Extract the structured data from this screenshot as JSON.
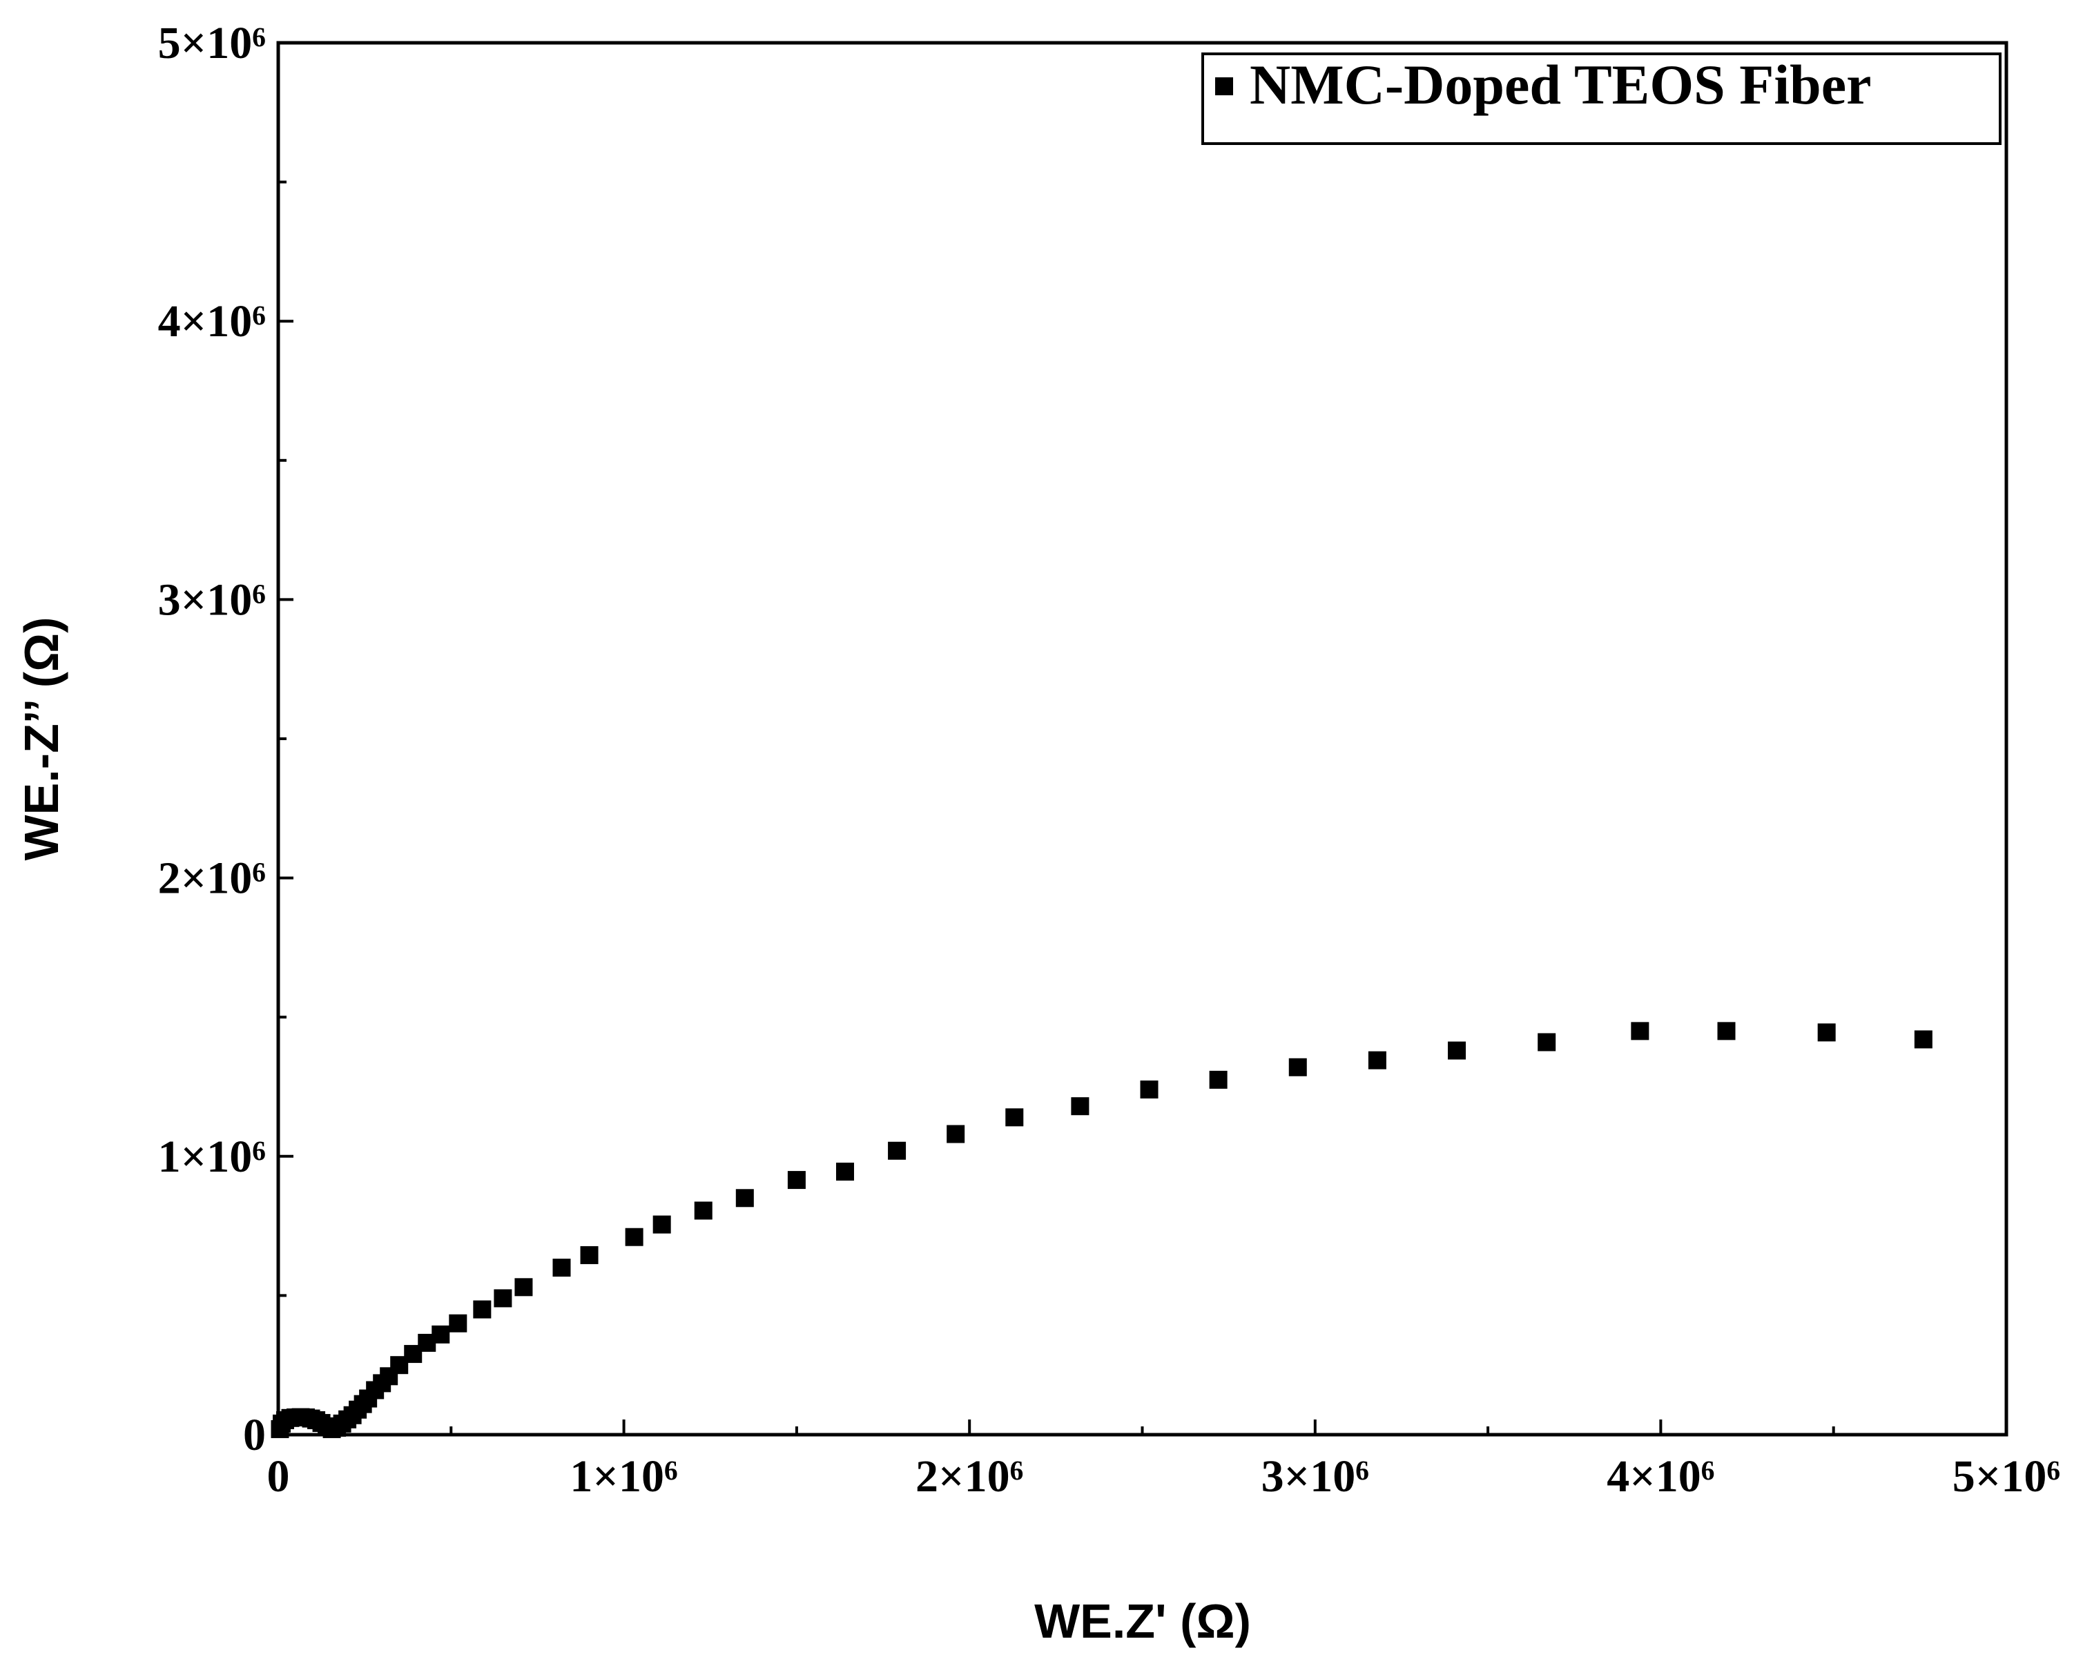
{
  "chart_data": {
    "type": "scatter",
    "title": "",
    "xlabel": "WE.Z' (Ω)",
    "ylabel": "WE.-Z’’ (Ω)",
    "xlim": [
      0,
      5000000
    ],
    "ylim": [
      0,
      5000000
    ],
    "x_ticks": [
      {
        "value": 0,
        "label": "0"
      },
      {
        "value": 1000000,
        "label": "1×10⁶"
      },
      {
        "value": 2000000,
        "label": "2×10⁶"
      },
      {
        "value": 3000000,
        "label": "3×10⁶"
      },
      {
        "value": 4000000,
        "label": "4×10⁶"
      },
      {
        "value": 5000000,
        "label": "5×10⁶"
      }
    ],
    "y_ticks": [
      {
        "value": 0,
        "label": "0"
      },
      {
        "value": 1000000,
        "label": "1×10⁶"
      },
      {
        "value": 2000000,
        "label": "2×10⁶"
      },
      {
        "value": 3000000,
        "label": "3×10⁶"
      },
      {
        "value": 4000000,
        "label": "4×10⁶"
      },
      {
        "value": 5000000,
        "label": "5×10⁶"
      }
    ],
    "minor_ticks_per_major": 1,
    "grid": false,
    "legend_position": "top-right",
    "series": [
      {
        "name": "NMC-Doped TEOS Fiber",
        "marker": "square",
        "color": "#000000",
        "points": [
          [
            5000,
            20000
          ],
          [
            10000,
            40000
          ],
          [
            20000,
            52000
          ],
          [
            35000,
            60000
          ],
          [
            50000,
            62000
          ],
          [
            65000,
            63000
          ],
          [
            80000,
            62000
          ],
          [
            95000,
            58000
          ],
          [
            110000,
            52000
          ],
          [
            125000,
            42000
          ],
          [
            140000,
            30000
          ],
          [
            155000,
            20000
          ],
          [
            170000,
            25000
          ],
          [
            185000,
            40000
          ],
          [
            200000,
            55000
          ],
          [
            215000,
            70000
          ],
          [
            230000,
            90000
          ],
          [
            245000,
            110000
          ],
          [
            260000,
            130000
          ],
          [
            280000,
            160000
          ],
          [
            300000,
            185000
          ],
          [
            320000,
            210000
          ],
          [
            350000,
            250000
          ],
          [
            390000,
            290000
          ],
          [
            430000,
            330000
          ],
          [
            470000,
            360000
          ],
          [
            520000,
            400000
          ],
          [
            590000,
            450000
          ],
          [
            650000,
            490000
          ],
          [
            710000,
            530000
          ],
          [
            820000,
            600000
          ],
          [
            900000,
            645000
          ],
          [
            1030000,
            710000
          ],
          [
            1110000,
            755000
          ],
          [
            1230000,
            805000
          ],
          [
            1350000,
            850000
          ],
          [
            1500000,
            915000
          ],
          [
            1640000,
            945000
          ],
          [
            1790000,
            1020000
          ],
          [
            1960000,
            1080000
          ],
          [
            2130000,
            1140000
          ],
          [
            2320000,
            1180000
          ],
          [
            2520000,
            1240000
          ],
          [
            2720000,
            1275000
          ],
          [
            2950000,
            1320000
          ],
          [
            3180000,
            1345000
          ],
          [
            3410000,
            1380000
          ],
          [
            3670000,
            1410000
          ],
          [
            3940000,
            1450000
          ],
          [
            4190000,
            1450000
          ],
          [
            4480000,
            1445000
          ],
          [
            4760000,
            1420000
          ]
        ]
      }
    ]
  }
}
